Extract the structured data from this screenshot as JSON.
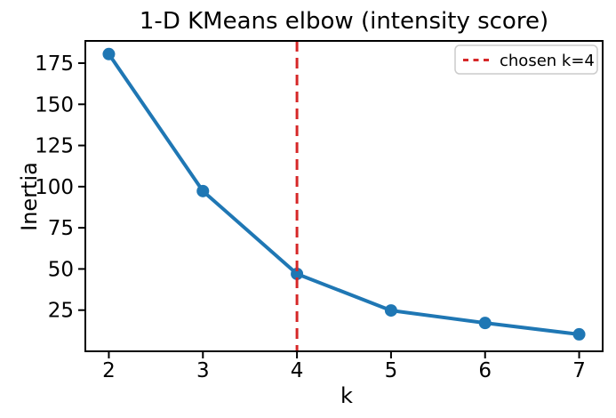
{
  "figure": {
    "title": "1-D KMeans elbow (intensity score)",
    "background": "#ffffff"
  },
  "colors": {
    "series": "#1f77b4",
    "chosen_line": "#d62728",
    "axis": "#000000",
    "legend_border": "#cccccc",
    "legend_bg": "#ffffff"
  },
  "legend": {
    "entries": [
      {
        "label": "chosen k=4",
        "style": "dashed",
        "color": "#d62728"
      }
    ],
    "position": "upper right"
  },
  "chart_data": {
    "type": "line",
    "title": "1-D KMeans elbow (intensity score)",
    "xlabel": "k",
    "ylabel": "Inertia",
    "x": [
      2,
      3,
      4,
      5,
      6,
      7
    ],
    "series": [
      {
        "name": "inertia",
        "values": [
          180.5,
          97.3,
          47.0,
          24.8,
          17.2,
          10.3
        ]
      }
    ],
    "x_ticks": [
      2,
      3,
      4,
      5,
      6,
      7
    ],
    "y_ticks": [
      25,
      50,
      75,
      100,
      125,
      150,
      175
    ],
    "xlim": [
      1.75,
      7.25
    ],
    "ylim": [
      0,
      188.5
    ],
    "grid": false,
    "marker": "o",
    "line_color": "#1f77b4",
    "chosen_k": 4,
    "chosen_k_label": "chosen k=4",
    "chosen_k_color": "#d62728",
    "legend_position": "upper right"
  }
}
